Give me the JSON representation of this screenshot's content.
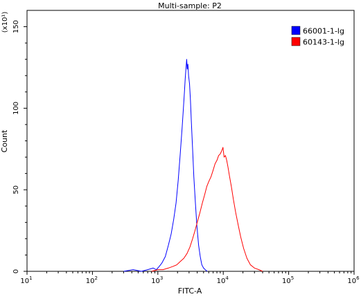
{
  "chart_data": {
    "type": "line",
    "title": "Multi-sample: P2",
    "xlabel": "FITC-A",
    "ylabel": "Count",
    "y_multiplier": "(x10¹)",
    "x_scale": "log",
    "xlim": [
      10,
      1000000
    ],
    "ylim": [
      0,
      160
    ],
    "x_ticks": [
      {
        "value": 10,
        "base": "10",
        "exp": "1"
      },
      {
        "value": 100,
        "base": "10",
        "exp": "2"
      },
      {
        "value": 1000,
        "base": "10",
        "exp": "3"
      },
      {
        "value": 10000,
        "base": "10",
        "exp": "4"
      },
      {
        "value": 100000,
        "base": "10",
        "exp": "5"
      },
      {
        "value": 1000000,
        "base": "10",
        "exp": "6"
      }
    ],
    "y_ticks": [
      0,
      50,
      100,
      150
    ],
    "legend_position": "top-right",
    "grid": false,
    "series": [
      {
        "name": "66001-1-lg",
        "color": "#0000ff",
        "points": [
          [
            300,
            0
          ],
          [
            420,
            1
          ],
          [
            560,
            0
          ],
          [
            700,
            1
          ],
          [
            850,
            2
          ],
          [
            950,
            1
          ],
          [
            1050,
            3
          ],
          [
            1150,
            5
          ],
          [
            1300,
            9
          ],
          [
            1450,
            16
          ],
          [
            1600,
            23
          ],
          [
            1750,
            32
          ],
          [
            1900,
            42
          ],
          [
            2050,
            56
          ],
          [
            2200,
            72
          ],
          [
            2350,
            88
          ],
          [
            2450,
            99
          ],
          [
            2550,
            110
          ],
          [
            2620,
            118
          ],
          [
            2700,
            125
          ],
          [
            2760,
            130
          ],
          [
            2820,
            124
          ],
          [
            2880,
            127
          ],
          [
            2950,
            120
          ],
          [
            3050,
            115
          ],
          [
            3150,
            105
          ],
          [
            3250,
            92
          ],
          [
            3400,
            75
          ],
          [
            3550,
            58
          ],
          [
            3750,
            42
          ],
          [
            3950,
            28
          ],
          [
            4200,
            16
          ],
          [
            4450,
            9
          ],
          [
            4700,
            4
          ],
          [
            5000,
            2
          ],
          [
            5300,
            1
          ],
          [
            5700,
            0
          ]
        ]
      },
      {
        "name": "60143-1-lg",
        "color": "#ff0000",
        "points": [
          [
            800,
            0
          ],
          [
            1000,
            1
          ],
          [
            1200,
            1
          ],
          [
            1450,
            2
          ],
          [
            1700,
            3
          ],
          [
            1950,
            4
          ],
          [
            2200,
            6
          ],
          [
            2500,
            8
          ],
          [
            2800,
            11
          ],
          [
            3100,
            15
          ],
          [
            3400,
            20
          ],
          [
            3700,
            25
          ],
          [
            4000,
            30
          ],
          [
            4400,
            36
          ],
          [
            4800,
            42
          ],
          [
            5200,
            47
          ],
          [
            5600,
            52
          ],
          [
            6000,
            55
          ],
          [
            6500,
            58
          ],
          [
            7000,
            62
          ],
          [
            7500,
            66
          ],
          [
            8000,
            68
          ],
          [
            8500,
            71
          ],
          [
            9000,
            72
          ],
          [
            9500,
            74
          ],
          [
            9900,
            76
          ],
          [
            10300,
            70
          ],
          [
            10800,
            71
          ],
          [
            11300,
            68
          ],
          [
            11800,
            64
          ],
          [
            12500,
            58
          ],
          [
            13300,
            52
          ],
          [
            14300,
            44
          ],
          [
            15500,
            36
          ],
          [
            17000,
            28
          ],
          [
            18500,
            21
          ],
          [
            20500,
            14
          ],
          [
            23000,
            8
          ],
          [
            26000,
            4
          ],
          [
            30000,
            2
          ],
          [
            35000,
            1
          ],
          [
            40000,
            0
          ]
        ]
      }
    ]
  }
}
